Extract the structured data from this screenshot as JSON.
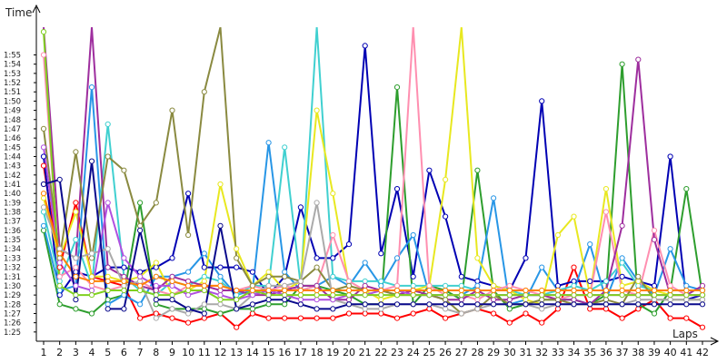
{
  "chart_data": {
    "type": "line",
    "title": "",
    "xlabel": "Laps",
    "ylabel": "Time",
    "x_unit": "lap",
    "y_unit": "m:ss",
    "x": [
      1,
      2,
      3,
      4,
      5,
      6,
      7,
      8,
      9,
      10,
      11,
      12,
      13,
      14,
      15,
      16,
      17,
      18,
      19,
      20,
      21,
      22,
      23,
      24,
      25,
      26,
      27,
      28,
      29,
      30,
      31,
      32,
      33,
      34,
      35,
      36,
      37,
      38,
      39,
      40,
      41,
      42
    ],
    "xlim": [
      1,
      42
    ],
    "ylim": [
      "1:24",
      "1:58"
    ],
    "y_ticks": [
      "1:25",
      "1:26",
      "1:27",
      "1:28",
      "1:29",
      "1:30",
      "1:31",
      "1:32",
      "1:33",
      "1:34",
      "1:35",
      "1:36",
      "1:37",
      "1:38",
      "1:39",
      "1:40",
      "1:41",
      "1:42",
      "1:43",
      "1:44",
      "1:45",
      "1:46",
      "1:47",
      "1:48",
      "1:49",
      "1:50",
      "1:51",
      "1:52",
      "1:53",
      "1:54",
      "1:55"
    ],
    "grid": false,
    "legend": "none",
    "series": [
      {
        "color": "#ff0000",
        "values": [
          "1:43.0",
          "1:32.0",
          "1:39.0",
          "1:31.0",
          "1:30.5",
          "1:30.0",
          "1:26.5",
          "1:27.0",
          "1:26.5",
          "1:26.0",
          "1:26.5",
          "1:27.0",
          "1:25.5",
          "1:27.0",
          "1:26.5",
          "1:26.5",
          "1:26.5",
          "1:26.5",
          "1:26.5",
          "1:27.0",
          "1:27.0",
          "1:27.0",
          "1:26.5",
          "1:27.0",
          "1:27.5",
          "1:26.5",
          "1:27.0",
          "1:27.5",
          "1:27.0",
          "1:26.0",
          "1:27.0",
          "1:26.0",
          "1:27.5",
          "1:32.0",
          "1:27.5",
          "1:27.5",
          "1:26.5",
          "1:27.5",
          "1:28.5",
          "1:26.5",
          "1:26.5",
          "1:25.5"
        ]
      },
      {
        "color": "#0000b3",
        "values": [
          "1:44.0",
          "1:29.0",
          "1:31.5",
          "1:31.0",
          "1:32.0",
          "1:32.0",
          "1:31.5",
          "1:32.0",
          "1:33.0",
          "1:40.0",
          "1:32.0",
          "1:32.0",
          "1:32.0",
          "1:31.5",
          "1:29.0",
          "1:31.0",
          "1:38.5",
          "1:33.0",
          "1:33.0",
          "1:34.5",
          "1:56.0",
          "1:33.5",
          "1:40.5",
          "1:31.0",
          "1:42.5",
          "1:37.5",
          "1:31.0",
          "1:30.5",
          "1:30.0",
          "1:29.5",
          "1:33.0",
          "1:50.0",
          "1:30.0",
          "1:30.5",
          "1:30.5",
          "1:30.5",
          "1:31.0",
          "1:30.5",
          "1:30.0",
          "1:44.0",
          "1:28.5",
          "1:29.0"
        ]
      },
      {
        "color": "#2e9e2e",
        "values": [
          "1:36.0",
          "1:28.0",
          "1:27.5",
          "1:27.0",
          "1:28.5",
          "1:29.0",
          "1:39.0",
          "1:28.0",
          "1:27.5",
          "1:27.5",
          "1:27.5",
          "1:27.0",
          "1:27.5",
          "1:27.5",
          "1:28.0",
          "1:28.0",
          "1:30.0",
          "1:30.0",
          "1:29.5",
          "1:29.0",
          "1:28.0",
          "1:28.0",
          "1:51.5",
          "1:28.0",
          "1:30.0",
          "1:29.5",
          "1:28.5",
          "1:42.5",
          "1:29.5",
          "1:27.5",
          "1:28.0",
          "1:28.5",
          "1:28.5",
          "1:28.5",
          "1:28.0",
          "1:29.0",
          "1:54.0",
          "1:28.0",
          "1:27.0",
          "1:29.5",
          "1:40.5",
          "1:29.0"
        ]
      },
      {
        "color": "#2896e6",
        "values": [
          "1:36.5",
          "1:29.5",
          "1:30.0",
          "1:51.5",
          "1:28.0",
          "1:29.0",
          "1:28.0",
          "1:31.0",
          "1:31.0",
          "1:31.5",
          "1:33.5",
          "1:31.0",
          "1:29.0",
          "1:29.5",
          "1:45.5",
          "1:31.5",
          "1:29.5",
          "1:30.0",
          "1:31.0",
          "1:30.0",
          "1:32.5",
          "1:30.0",
          "1:33.0",
          "1:35.5",
          "1:29.0",
          "1:29.0",
          "1:29.0",
          "1:30.0",
          "1:39.5",
          "1:28.0",
          "1:28.5",
          "1:32.0",
          "1:29.5",
          "1:29.5",
          "1:34.5",
          "1:28.5",
          "1:33.0",
          "1:30.5",
          "1:29.0",
          "1:34.0",
          "1:30.0",
          "1:29.5"
        ]
      },
      {
        "color": "#40d0d0",
        "values": [
          "1:38.0",
          "1:30.5",
          "1:35.0",
          "1:30.0",
          "1:47.5",
          "1:31.0",
          "1:29.5",
          "1:29.0",
          "1:30.5",
          "1:30.0",
          "1:31.0",
          "1:30.5",
          "1:29.0",
          "1:30.0",
          "1:30.0",
          "1:45.0",
          "1:30.0",
          "1:58.0",
          "1:31.0",
          "1:30.5",
          "1:30.5",
          "1:30.5",
          "1:30.0",
          "1:30.0",
          "1:30.0",
          "1:30.0",
          "1:30.0",
          "1:29.5",
          "1:29.5",
          "1:29.5",
          "1:29.0",
          "1:29.0",
          "1:29.5",
          "1:30.0",
          "1:29.5",
          "1:30.5",
          "1:32.5",
          "1:30.0",
          "1:29.5",
          "1:29.5",
          "1:29.5",
          "1:29.5"
        ]
      },
      {
        "color": "#e8e820",
        "values": [
          "1:39.5",
          "1:33.0",
          "1:38.0",
          "1:31.0",
          "1:31.0",
          "1:30.5",
          "1:31.0",
          "1:32.5",
          "1:29.0",
          "1:29.5",
          "1:30.5",
          "1:41.0",
          "1:34.0",
          "1:30.0",
          "1:31.5",
          "1:29.5",
          "1:30.5",
          "1:49.0",
          "1:40.0",
          "1:30.0",
          "1:29.5",
          "1:28.5",
          "1:29.0",
          "1:29.5",
          "1:30.0",
          "1:41.5",
          "1:58.0",
          "1:33.0",
          "1:30.0",
          "1:29.5",
          "1:28.5",
          "1:28.0",
          "1:35.5",
          "1:37.5",
          "1:29.0",
          "1:40.5",
          "1:30.0",
          "1:30.5",
          "1:29.5",
          "1:29.0",
          "1:29.0",
          "1:29.0"
        ]
      },
      {
        "color": "#ff8fb0",
        "values": [
          "1:55.0",
          "1:31.0",
          "1:32.0",
          "1:30.0",
          "1:29.5",
          "1:30.0",
          "1:30.5",
          "1:29.5",
          "1:29.0",
          "1:30.0",
          "1:30.0",
          "1:30.0",
          "1:29.5",
          "1:30.0",
          "1:29.5",
          "1:30.0",
          "1:29.5",
          "1:30.0",
          "1:35.5",
          "1:30.5",
          "1:29.5",
          "1:29.5",
          "1:30.0",
          "1:58.0",
          "1:30.0",
          "1:29.0",
          "1:29.0",
          "1:28.5",
          "1:29.5",
          "1:30.0",
          "1:29.5",
          "1:29.0",
          "1:28.5",
          "1:29.0",
          "1:29.0",
          "1:38.0",
          "1:29.5",
          "1:29.0",
          "1:36.0",
          "1:30.0",
          "1:29.0",
          "1:29.0"
        ]
      },
      {
        "color": "#9e2e9e",
        "values": [
          "1:58.0",
          "1:34.0",
          "1:33.0",
          "1:58.0",
          "1:32.0",
          "1:31.0",
          "1:30.0",
          "1:29.5",
          "1:31.0",
          "1:30.5",
          "1:30.0",
          "1:29.5",
          "1:29.5",
          "1:29.0",
          "1:29.0",
          "1:29.5",
          "1:30.0",
          "1:30.0",
          "1:28.5",
          "1:28.5",
          "1:30.0",
          "1:29.5",
          "1:29.0",
          "1:29.5",
          "1:29.0",
          "1:28.5",
          "1:28.5",
          "1:29.5",
          "1:28.5",
          "1:28.5",
          "1:29.0",
          "1:29.0",
          "1:28.5",
          "1:28.5",
          "1:28.0",
          "1:29.5",
          "1:36.5",
          "1:54.5",
          "1:35.0",
          "1:29.0",
          "1:29.0",
          "1:30.0"
        ]
      },
      {
        "color": "#8a8a40",
        "values": [
          "1:47.0",
          "1:33.0",
          "1:44.5",
          "1:33.0",
          "1:44.0",
          "1:42.5",
          "1:36.5",
          "1:39.0",
          "1:49.0",
          "1:35.5",
          "1:51.0",
          "1:58.0",
          "1:33.0",
          "1:30.0",
          "1:31.0",
          "1:31.0",
          "1:30.5",
          "1:32.0",
          "1:29.5",
          "1:30.0",
          "1:29.5",
          "1:29.5",
          "1:29.0",
          "1:29.0",
          "1:29.0",
          "1:28.5",
          "1:27.0",
          "1:27.5",
          "1:29.0",
          "1:28.0",
          "1:28.0",
          "1:28.5",
          "1:28.5",
          "1:28.0",
          "1:28.0",
          "1:28.5",
          "1:28.0",
          "1:31.0",
          "1:28.5",
          "1:28.5",
          "1:28.5",
          "1:28.5"
        ]
      },
      {
        "color": "#aaaaaa",
        "values": [
          "1:38.5",
          "1:34.0",
          "1:33.0",
          "1:33.5",
          "1:34.0",
          "1:30.0",
          "1:30.5",
          "1:26.5",
          "1:27.5",
          "1:27.0",
          "1:28.0",
          "1:28.0",
          "1:27.5",
          "1:29.0",
          "1:30.0",
          "1:30.0",
          "1:30.5",
          "1:39.0",
          "1:28.5",
          "1:28.0",
          "1:27.5",
          "1:27.5",
          "1:28.0",
          "1:28.0",
          "1:28.0",
          "1:27.5",
          "1:27.0",
          "1:27.5",
          "1:28.0",
          "1:28.0",
          "1:28.0",
          "1:27.5",
          "1:28.0",
          "1:28.0",
          "1:28.0",
          "1:28.0",
          "1:28.0",
          "1:28.5",
          "1:28.5",
          "1:28.5",
          "1:28.5",
          "1:28.5"
        ]
      },
      {
        "color": "#b050e0",
        "values": [
          "1:45.0",
          "1:32.5",
          "1:30.0",
          "1:29.5",
          "1:39.0",
          "1:33.0",
          "1:31.0",
          "1:30.0",
          "1:30.0",
          "1:29.0",
          "1:29.5",
          "1:29.0",
          "1:28.5",
          "1:29.0",
          "1:29.5",
          "1:29.0",
          "1:28.5",
          "1:28.5",
          "1:28.5",
          "1:29.0",
          "1:29.0",
          "1:29.5",
          "1:29.5",
          "1:29.0",
          "1:29.0",
          "1:29.0",
          "1:29.0",
          "1:29.0",
          "1:29.0",
          "1:29.0",
          "1:29.0",
          "1:29.0",
          "1:29.0",
          "1:29.0",
          "1:29.0",
          "1:29.0",
          "1:29.0",
          "1:29.0",
          "1:29.0",
          "1:29.0",
          "1:29.0",
          "1:29.0"
        ]
      },
      {
        "color": "#80d020",
        "values": [
          "1:57.5",
          "1:30.0",
          "1:29.0",
          "1:29.0",
          "1:29.5",
          "1:29.5",
          "1:29.5",
          "1:29.0",
          "1:29.0",
          "1:29.5",
          "1:29.5",
          "1:28.5",
          "1:28.5",
          "1:29.5",
          "1:29.0",
          "1:29.0",
          "1:29.0",
          "1:29.0",
          "1:29.0",
          "1:29.0",
          "1:29.0",
          "1:29.0",
          "1:29.0",
          "1:29.0",
          "1:29.0",
          "1:29.0",
          "1:29.0",
          "1:29.0",
          "1:29.0",
          "1:29.0",
          "1:29.0",
          "1:29.0",
          "1:29.0",
          "1:29.0",
          "1:29.0",
          "1:29.0",
          "1:29.0",
          "1:29.0",
          "1:29.0",
          "1:29.0",
          "1:29.0",
          "1:29.0"
        ]
      },
      {
        "color": "#ff8000",
        "values": [
          "1:40.0",
          "1:33.5",
          "1:31.0",
          "1:30.5",
          "1:30.5",
          "1:30.5",
          "1:30.0",
          "1:31.0",
          "1:30.5",
          "1:30.0",
          "1:30.0",
          "1:30.0",
          "1:29.5",
          "1:29.5",
          "1:29.5",
          "1:29.5",
          "1:29.5",
          "1:29.5",
          "1:29.5",
          "1:29.5",
          "1:29.5",
          "1:29.5",
          "1:29.5",
          "1:29.5",
          "1:29.5",
          "1:29.5",
          "1:29.5",
          "1:29.5",
          "1:29.5",
          "1:29.5",
          "1:29.5",
          "1:29.5",
          "1:29.5",
          "1:29.5",
          "1:29.5",
          "1:29.5",
          "1:29.5",
          "1:29.5",
          "1:29.5",
          "1:29.5",
          "1:29.5",
          "1:29.5"
        ]
      },
      {
        "color": "#0a0a8c",
        "values": [
          "1:41.0",
          "1:41.5",
          "1:28.5",
          "1:43.5",
          "1:27.5",
          "1:27.5",
          "1:36.0",
          "1:28.5",
          "1:28.5",
          "1:27.5",
          "1:27.0",
          "1:36.5",
          "1:27.5",
          "1:28.0",
          "1:28.5",
          "1:28.5",
          "1:28.0",
          "1:27.5",
          "1:27.5",
          "1:28.0",
          "1:28.0",
          "1:28.0",
          "1:28.0",
          "1:28.0",
          "1:28.0",
          "1:28.0",
          "1:28.0",
          "1:28.0",
          "1:28.0",
          "1:28.0",
          "1:28.0",
          "1:28.0",
          "1:28.0",
          "1:28.0",
          "1:28.0",
          "1:28.0",
          "1:28.0",
          "1:28.0",
          "1:28.0",
          "1:28.0",
          "1:28.0",
          "1:28.0"
        ]
      }
    ]
  }
}
